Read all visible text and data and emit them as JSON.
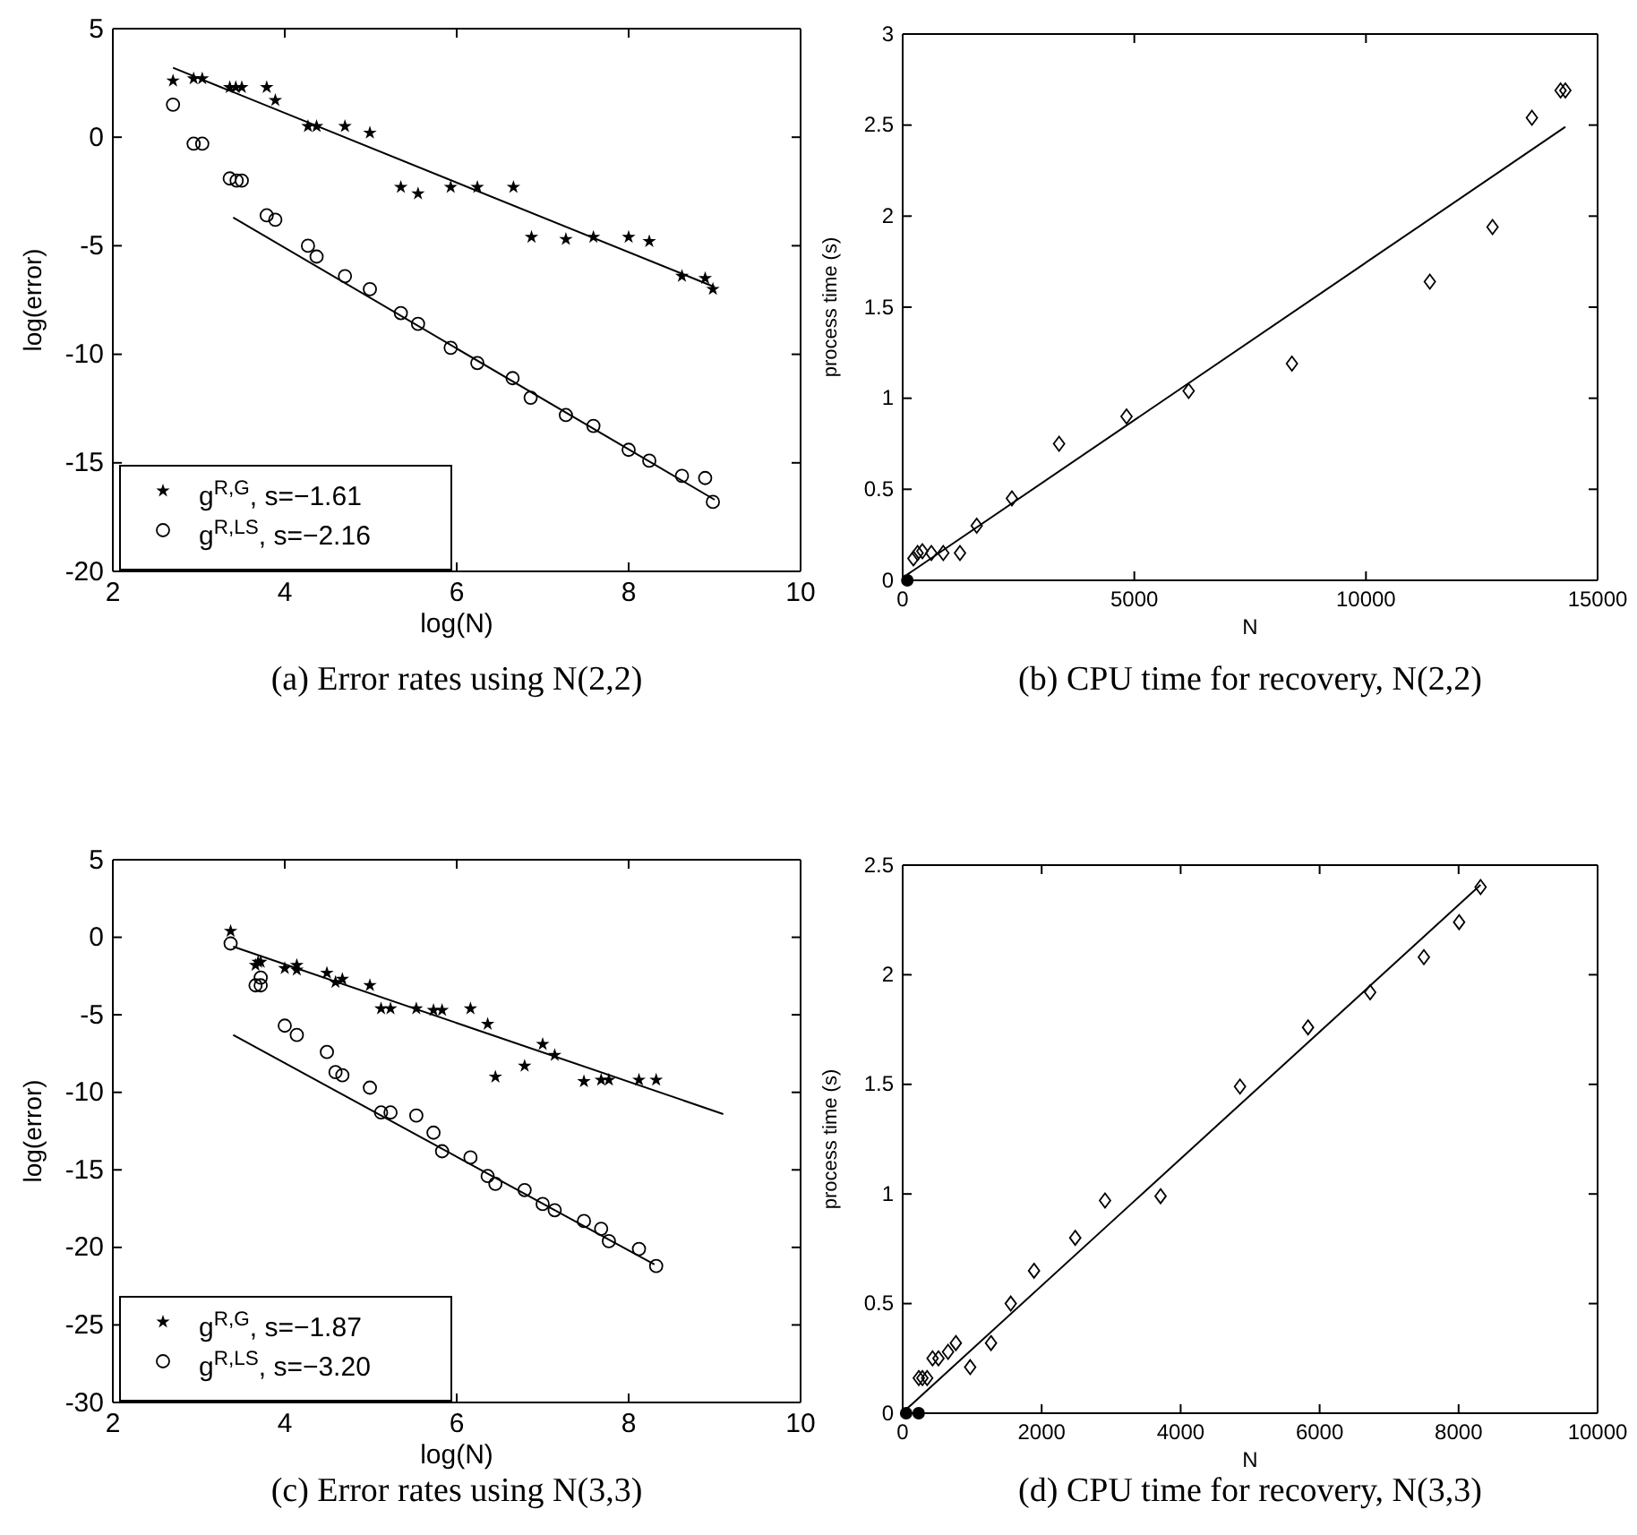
{
  "chart_data": [
    {
      "type": "scatter",
      "title": "(a) Error rates using N(2,2)",
      "xlabel": "log(N)",
      "ylabel": "log(error)",
      "xlim": [
        2,
        10
      ],
      "xticks": [
        2,
        4,
        6,
        8,
        10
      ],
      "ylim": [
        -20,
        5
      ],
      "yticks": [
        -20,
        -15,
        -10,
        -5,
        0,
        5
      ],
      "grid": false,
      "legend": "bottom left",
      "series": [
        {
          "name": "g$^{R,G}$, s=−1.61",
          "marker": "star",
          "color": "#000000",
          "x": [
            2.7,
            2.94,
            3.04,
            3.36,
            3.43,
            3.5,
            3.79,
            3.89,
            4.27,
            4.37,
            4.7,
            4.99,
            5.35,
            5.55,
            5.93,
            6.24,
            6.66,
            6.87,
            7.27,
            7.59,
            8.0,
            8.24,
            8.62,
            8.89,
            8.98
          ],
          "values": [
            2.6,
            2.7,
            2.7,
            2.3,
            2.3,
            2.3,
            2.3,
            1.7,
            0.5,
            0.5,
            0.5,
            0.2,
            -2.3,
            -2.6,
            -2.3,
            -2.3,
            -2.3,
            -4.6,
            -4.7,
            -4.6,
            -4.6,
            -4.8,
            -6.4,
            -6.5,
            -7.0
          ]
        },
        {
          "name": "g$^{R,LS}$, s=−2.16",
          "marker": "circle",
          "color": "#000000",
          "x": [
            2.7,
            2.94,
            3.04,
            3.36,
            3.44,
            3.5,
            3.79,
            3.89,
            4.27,
            4.37,
            4.7,
            4.99,
            5.35,
            5.55,
            5.93,
            6.24,
            6.65,
            6.86,
            7.27,
            7.59,
            8.0,
            8.24,
            8.62,
            8.89,
            8.98
          ],
          "values": [
            1.5,
            -0.3,
            -0.3,
            -1.9,
            -2.0,
            -2.0,
            -3.6,
            -3.8,
            -5.0,
            -5.5,
            -6.4,
            -7.0,
            -8.1,
            -8.6,
            -9.7,
            -10.4,
            -11.1,
            -12.0,
            -12.8,
            -13.3,
            -14.4,
            -14.9,
            -15.6,
            -15.7,
            -16.8
          ]
        },
        {
          "type": "line",
          "color": "#000000",
          "x": [
            2.7,
            9.0
          ],
          "values": [
            3.2,
            -6.9
          ]
        },
        {
          "type": "line",
          "color": "#000000",
          "x": [
            3.4,
            9.0
          ],
          "values": [
            -3.7,
            -16.7
          ]
        }
      ]
    },
    {
      "type": "scatter",
      "title": "(b) CPU time for recovery, N(2,2)",
      "xlabel": "N",
      "ylabel": "process time (s)",
      "xlim": [
        0,
        15000
      ],
      "xticks": [
        0,
        5000,
        10000,
        15000
      ],
      "ylim": [
        0,
        3
      ],
      "yticks": [
        0,
        0.5,
        1,
        1.5,
        2,
        2.5,
        3
      ],
      "grid": false,
      "legend": false,
      "series": [
        {
          "marker": "diamond",
          "color": "#000000",
          "x": [
            232,
            322,
            425,
            619,
            876,
            1237,
            1598,
            2358,
            3376,
            4832,
            6173,
            8402,
            11379,
            12732,
            13582,
            14201,
            14304
          ],
          "values": [
            0.12,
            0.15,
            0.16,
            0.15,
            0.15,
            0.15,
            0.3,
            0.45,
            0.75,
            0.9,
            1.04,
            1.19,
            1.64,
            1.94,
            2.54,
            2.69,
            2.69
          ]
        },
        {
          "marker": "filled-circle",
          "color": "#000000",
          "x": [
            100
          ],
          "values": [
            0
          ]
        },
        {
          "type": "line",
          "color": "#000000",
          "x": [
            90,
            14304
          ],
          "values": [
            0.03,
            2.49
          ]
        }
      ]
    },
    {
      "type": "scatter",
      "title": "(c) Error rates using N(3,3)",
      "xlabel": "log(N)",
      "ylabel": "log(error)",
      "xlim": [
        2,
        10
      ],
      "xticks": [
        2,
        4,
        6,
        8,
        10
      ],
      "ylim": [
        -30,
        5
      ],
      "yticks": [
        -30,
        -25,
        -20,
        -15,
        -10,
        -5,
        0,
        5
      ],
      "grid": false,
      "legend": "bottom left",
      "series": [
        {
          "name": "g$^{R,G}$, s=−1.87",
          "marker": "star",
          "color": "#000000",
          "x": [
            3.37,
            3.66,
            3.69,
            3.72,
            4.0,
            4.14,
            4.14,
            4.49,
            4.59,
            4.67,
            4.99,
            5.12,
            5.23,
            5.53,
            5.73,
            5.83,
            6.16,
            6.36,
            6.45,
            6.79,
            7.0,
            7.14,
            7.48,
            7.68,
            7.77,
            8.12,
            8.32
          ],
          "values": [
            0.4,
            -1.8,
            -1.6,
            -1.6,
            -2.0,
            -1.8,
            -2.1,
            -2.3,
            -2.9,
            -2.7,
            -3.1,
            -4.6,
            -4.6,
            -4.6,
            -4.7,
            -4.7,
            -4.6,
            -5.6,
            -9.0,
            -8.3,
            -6.9,
            -7.6,
            -9.3,
            -9.2,
            -9.2,
            -9.2,
            -9.2
          ]
        },
        {
          "name": "g$^{R,LS}$, s=−3.20",
          "marker": "circle",
          "color": "#000000",
          "x": [
            3.37,
            3.66,
            3.72,
            3.72,
            4.0,
            4.14,
            4.49,
            4.59,
            4.67,
            4.99,
            5.12,
            5.23,
            5.53,
            5.73,
            5.83,
            6.16,
            6.36,
            6.45,
            6.79,
            7.0,
            7.14,
            7.48,
            7.68,
            7.77,
            8.12,
            8.32
          ],
          "values": [
            -0.4,
            -3.1,
            -3.1,
            -2.6,
            -5.7,
            -6.3,
            -7.4,
            -8.7,
            -8.9,
            -9.7,
            -11.3,
            -11.3,
            -11.5,
            -12.6,
            -13.8,
            -14.2,
            -15.4,
            -15.9,
            -16.3,
            -17.2,
            -17.6,
            -18.3,
            -18.8,
            -19.6,
            -20.1,
            -21.2
          ]
        },
        {
          "type": "line",
          "color": "#000000",
          "x": [
            3.4,
            9.1
          ],
          "values": [
            -0.6,
            -11.4
          ]
        },
        {
          "type": "line",
          "color": "#000000",
          "x": [
            3.4,
            8.3
          ],
          "values": [
            -6.3,
            -21.1
          ]
        }
      ]
    },
    {
      "type": "scatter",
      "title": "(d) CPU time for recovery, N(3,3)",
      "xlabel": "N",
      "ylabel": "process time (s)",
      "xlim": [
        0,
        10000
      ],
      "xticks": [
        0,
        2000,
        4000,
        6000,
        8000,
        10000
      ],
      "ylim": [
        0,
        2.5
      ],
      "yticks": [
        0,
        0.5,
        1,
        1.5,
        2,
        2.5
      ],
      "grid": false,
      "legend": false,
      "series": [
        {
          "marker": "diamond",
          "color": "#000000",
          "x": [
            232,
            284,
            352,
            430,
            515,
            653,
            765,
            971,
            1271,
            1555,
            1890,
            2483,
            2912,
            3711,
            4854,
            5833,
            6727,
            7500,
            8007,
            8316
          ],
          "values": [
            0.16,
            0.16,
            0.16,
            0.25,
            0.25,
            0.28,
            0.32,
            0.21,
            0.32,
            0.5,
            0.65,
            0.8,
            0.97,
            0.99,
            1.49,
            1.76,
            1.92,
            2.08,
            2.24,
            2.4
          ]
        },
        {
          "marker": "filled-circle",
          "color": "#000000",
          "x": [
            50,
            230
          ],
          "values": [
            0,
            0
          ]
        },
        {
          "type": "line",
          "color": "#000000",
          "x": [
            60,
            8316
          ],
          "values": [
            0.02,
            2.41
          ]
        }
      ]
    }
  ]
}
